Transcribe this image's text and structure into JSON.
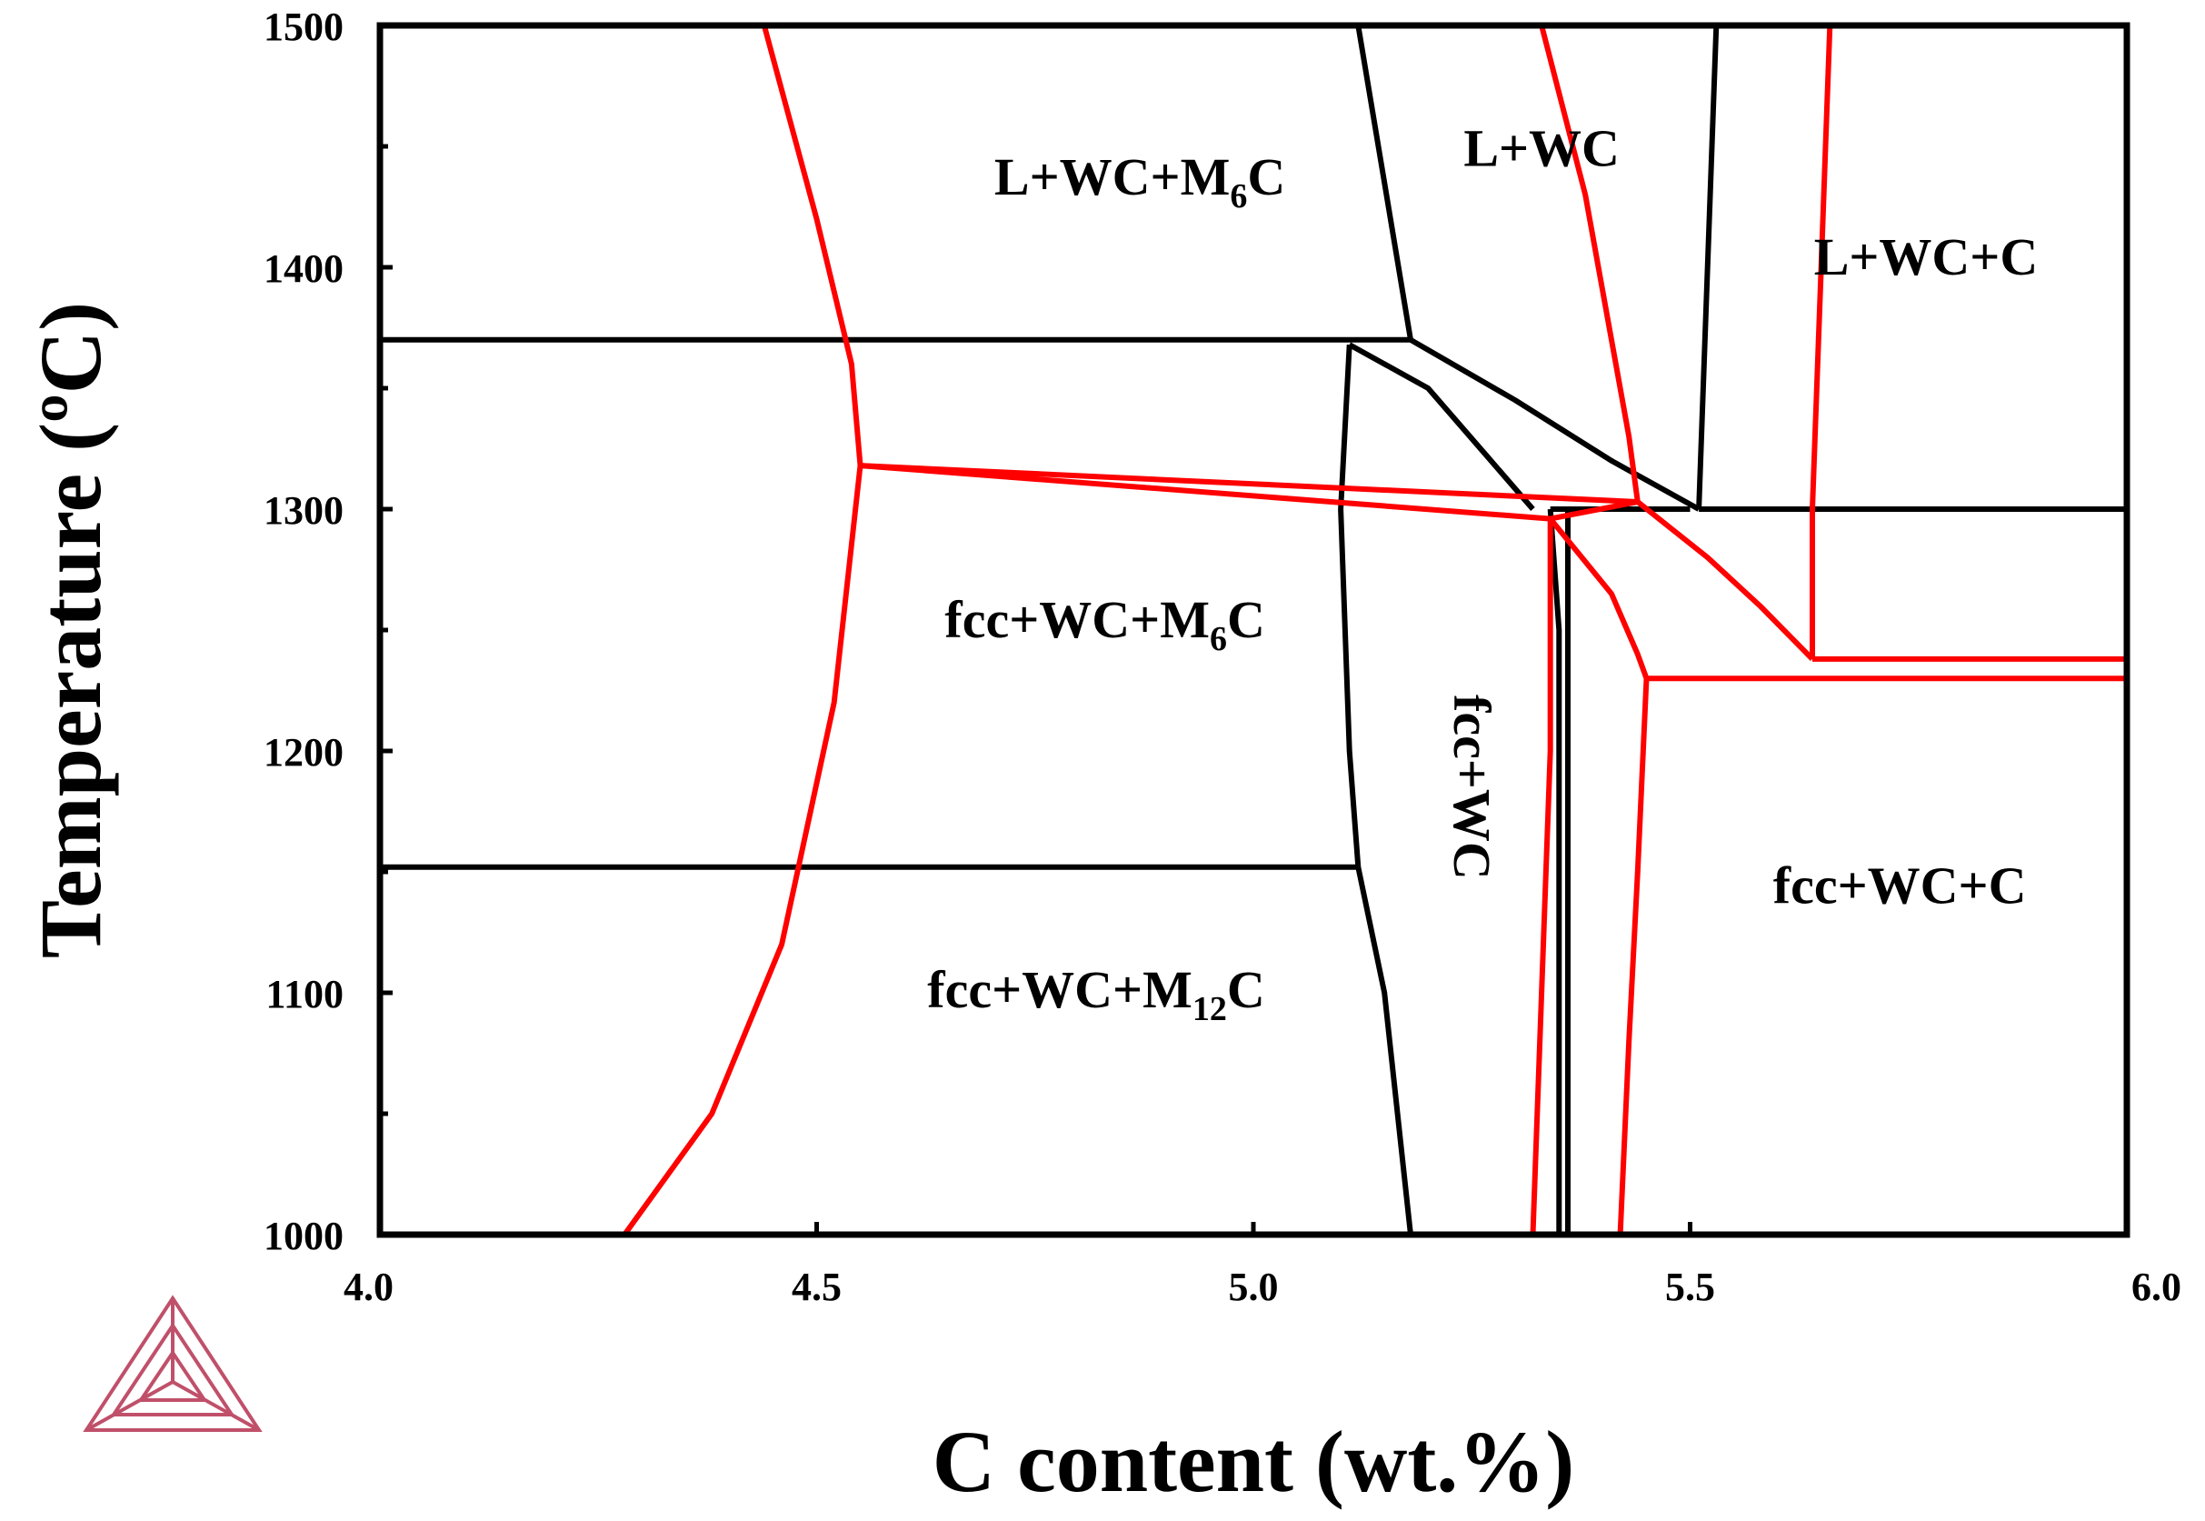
{
  "chart_data": {
    "type": "line",
    "title": "",
    "xlabel": "C content (wt.%)",
    "ylabel": "Temperature (ºC)",
    "xlim": [
      4.0,
      6.0
    ],
    "ylim": [
      1000,
      1500
    ],
    "x_ticks": [
      4.0,
      4.5,
      5.0,
      5.5,
      6.0
    ],
    "x_tick_labels": [
      "4.0",
      "4.5",
      "5.0",
      "5.5",
      "6.0"
    ],
    "y_ticks": [
      1000,
      1100,
      1200,
      1300,
      1400,
      1500
    ],
    "y_tick_labels": [
      "1000",
      "1100",
      "1200",
      "1300",
      "1400",
      "1500"
    ],
    "grid": false,
    "colors": {
      "black_boundaries": "#000000",
      "red_boundaries": "#ff0000",
      "logo": "#c0506a"
    },
    "regions": [
      {
        "main": "L+WC+M",
        "sub": "6",
        "tail": "C",
        "x": 4.87,
        "y": 1430
      },
      {
        "main": "L+WC",
        "sub": "",
        "tail": "",
        "x": 5.33,
        "y": 1442
      },
      {
        "main": "L+WC+C",
        "sub": "",
        "tail": "",
        "x": 5.77,
        "y": 1397
      },
      {
        "main": "fcc+WC+M",
        "sub": "6",
        "tail": "C",
        "x": 4.83,
        "y": 1247
      },
      {
        "main": "fcc+WC",
        "sub": "",
        "tail": "",
        "x": 5.23,
        "y": 1185,
        "rotate": 90
      },
      {
        "main": "fcc+WC+C",
        "sub": "",
        "tail": "",
        "x": 5.74,
        "y": 1137
      },
      {
        "main": "fcc+WC+M",
        "sub": "12",
        "tail": "C",
        "x": 4.82,
        "y": 1094
      }
    ],
    "series": [
      {
        "color": "black",
        "points": [
          [
            4.0,
            1370
          ],
          [
            5.18,
            1370
          ]
        ]
      },
      {
        "color": "black",
        "points": [
          [
            5.12,
            1500
          ],
          [
            5.15,
            1435
          ],
          [
            5.18,
            1370
          ]
        ]
      },
      {
        "color": "black",
        "points": [
          [
            5.18,
            1370
          ],
          [
            5.3,
            1345
          ],
          [
            5.41,
            1320
          ],
          [
            5.51,
            1300
          ]
        ]
      },
      {
        "color": "black",
        "points": [
          [
            5.11,
            1368
          ],
          [
            5.2,
            1350
          ],
          [
            5.26,
            1325
          ],
          [
            5.32,
            1300
          ]
        ]
      },
      {
        "color": "black",
        "points": [
          [
            5.11,
            1368
          ],
          [
            5.1,
            1300
          ],
          [
            5.11,
            1200
          ],
          [
            5.12,
            1152
          ]
        ]
      },
      {
        "color": "black",
        "points": [
          [
            4.0,
            1152
          ],
          [
            5.12,
            1152
          ]
        ]
      },
      {
        "color": "black",
        "points": [
          [
            5.12,
            1152
          ],
          [
            5.15,
            1100
          ],
          [
            5.18,
            1000
          ]
        ]
      },
      {
        "color": "black",
        "points": [
          [
            5.34,
            1300
          ],
          [
            5.5,
            1300
          ]
        ]
      },
      {
        "color": "black",
        "points": [
          [
            5.53,
            1500
          ],
          [
            5.51,
            1300
          ]
        ]
      },
      {
        "color": "black",
        "points": [
          [
            5.51,
            1300
          ],
          [
            6.0,
            1300
          ]
        ]
      },
      {
        "color": "black",
        "points": [
          [
            5.34,
            1300
          ],
          [
            5.35,
            1250
          ],
          [
            5.35,
            1150
          ],
          [
            5.35,
            1000
          ]
        ]
      },
      {
        "color": "black",
        "points": [
          [
            5.36,
            1300
          ],
          [
            5.36,
            1000
          ]
        ]
      },
      {
        "color": "red",
        "points": [
          [
            4.44,
            1500
          ],
          [
            4.5,
            1420
          ],
          [
            4.54,
            1360
          ],
          [
            4.55,
            1318
          ]
        ]
      },
      {
        "color": "red",
        "points": [
          [
            4.55,
            1318
          ],
          [
            4.52,
            1220
          ],
          [
            4.46,
            1120
          ],
          [
            4.38,
            1050
          ],
          [
            4.28,
            1000
          ]
        ]
      },
      {
        "color": "red",
        "points": [
          [
            4.55,
            1318
          ],
          [
            5.44,
            1303
          ]
        ]
      },
      {
        "color": "red",
        "points": [
          [
            4.55,
            1318
          ],
          [
            5.34,
            1296
          ]
        ]
      },
      {
        "color": "red",
        "points": [
          [
            5.34,
            1296
          ],
          [
            5.44,
            1303
          ]
        ]
      },
      {
        "color": "red",
        "points": [
          [
            5.33,
            1500
          ],
          [
            5.38,
            1430
          ],
          [
            5.41,
            1370
          ],
          [
            5.43,
            1330
          ],
          [
            5.44,
            1303
          ]
        ]
      },
      {
        "color": "red",
        "points": [
          [
            5.34,
            1296
          ],
          [
            5.34,
            1200
          ],
          [
            5.33,
            1100
          ],
          [
            5.32,
            1000
          ]
        ]
      },
      {
        "color": "red",
        "points": [
          [
            5.44,
            1303
          ],
          [
            5.52,
            1280
          ],
          [
            5.58,
            1260
          ],
          [
            5.64,
            1238
          ]
        ]
      },
      {
        "color": "red",
        "points": [
          [
            5.34,
            1296
          ],
          [
            5.41,
            1265
          ],
          [
            5.44,
            1240
          ],
          [
            5.45,
            1230
          ]
        ]
      },
      {
        "color": "red",
        "points": [
          [
            5.45,
            1230
          ],
          [
            5.44,
            1150
          ],
          [
            5.43,
            1080
          ],
          [
            5.42,
            1000
          ]
        ]
      },
      {
        "color": "red",
        "points": [
          [
            5.45,
            1230
          ],
          [
            6.0,
            1230
          ]
        ]
      },
      {
        "color": "red",
        "points": [
          [
            5.64,
            1238
          ],
          [
            6.0,
            1238
          ]
        ]
      },
      {
        "color": "red",
        "points": [
          [
            5.66,
            1500
          ],
          [
            5.65,
            1400
          ],
          [
            5.64,
            1300
          ],
          [
            5.64,
            1238
          ]
        ]
      }
    ]
  }
}
